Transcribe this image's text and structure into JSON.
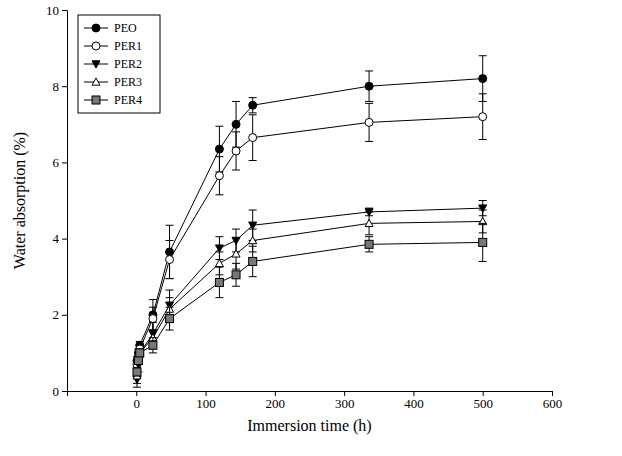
{
  "chart_data": {
    "type": "line",
    "x_label": "Immersion time (h)",
    "y_label": "Water absorption (%)",
    "x": [
      1,
      3,
      5,
      24,
      48,
      120,
      144,
      168,
      336,
      500
    ],
    "xlim": [
      -100,
      600
    ],
    "xticks": [
      0,
      100,
      200,
      300,
      400,
      500,
      600
    ],
    "ylim": [
      0,
      10
    ],
    "yticks": [
      0,
      2,
      4,
      6,
      8,
      10
    ],
    "grid": false,
    "legend": "upper left",
    "series": [
      {
        "name": "PEO",
        "color": "#000000",
        "marker": "circle",
        "line_style": "solid",
        "values": [
          0.8,
          1.0,
          1.2,
          2.0,
          3.65,
          6.35,
          7.0,
          7.5,
          8.0,
          8.2
        ],
        "errors": [
          0.1,
          0.1,
          0.1,
          0.4,
          0.7,
          0.6,
          0.6,
          0.2,
          0.4,
          0.6
        ]
      },
      {
        "name": "PER1",
        "color": "#000000",
        "marker": "circle-open",
        "line_style": "solid",
        "values": [
          0.7,
          0.9,
          1.1,
          1.9,
          3.45,
          5.65,
          6.3,
          6.65,
          7.05,
          7.2
        ],
        "errors": [
          0.1,
          0.1,
          0.1,
          0.3,
          0.5,
          0.5,
          0.5,
          0.6,
          0.5,
          0.6
        ]
      },
      {
        "name": "PER2",
        "color": "#000000",
        "marker": "triangle-down",
        "line_style": "solid",
        "values": [
          0.3,
          0.7,
          1.0,
          1.5,
          2.25,
          3.75,
          3.95,
          4.35,
          4.7,
          4.8
        ],
        "errors": [
          0.2,
          0.2,
          0.1,
          0.3,
          0.4,
          0.3,
          0.3,
          0.4,
          0.1,
          0.2
        ]
      },
      {
        "name": "PER3",
        "color": "#000000",
        "marker": "triangle-up-open",
        "line_style": "solid",
        "values": [
          0.4,
          0.8,
          1.0,
          1.4,
          2.15,
          3.35,
          3.6,
          3.95,
          4.4,
          4.45
        ],
        "errors": [
          0.2,
          0.1,
          0.1,
          0.2,
          0.3,
          0.3,
          0.4,
          0.3,
          0.3,
          0.3
        ]
      },
      {
        "name": "PER4",
        "color": "#000000",
        "marker": "square",
        "line_style": "solid",
        "values": [
          0.5,
          0.8,
          1.0,
          1.2,
          1.9,
          2.85,
          3.05,
          3.4,
          3.85,
          3.9
        ],
        "errors": [
          0.1,
          0.1,
          0.1,
          0.2,
          0.3,
          0.4,
          0.3,
          0.4,
          0.2,
          0.5
        ]
      }
    ]
  }
}
